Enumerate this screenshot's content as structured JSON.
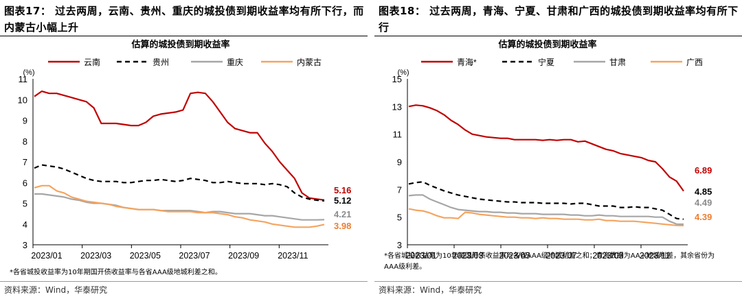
{
  "chart_data": [
    {
      "type": "line",
      "heading": "图表17： 过去两周，云南、贵州、重庆的城投债到期收益率均有所下行，而内蒙古小幅上升",
      "title": "估算的城投债到期收益率",
      "ylabel": "(%)",
      "ylim": [
        3,
        11
      ],
      "yticks": [
        "3",
        "4",
        "5",
        "6",
        "7",
        "8",
        "9",
        "10",
        "11"
      ],
      "xticks": [
        "2023/01",
        "2023/03",
        "2023/05",
        "2023/07",
        "2023/09",
        "2023/11"
      ],
      "series": [
        {
          "name": "云南",
          "color": "#C00000",
          "dash": "",
          "end_label": "5.16",
          "values": [
            10.15,
            10.4,
            10.3,
            10.3,
            10.2,
            10.1,
            10.0,
            9.9,
            9.6,
            8.85,
            8.85,
            8.85,
            8.8,
            8.75,
            8.75,
            8.9,
            9.2,
            9.3,
            9.35,
            9.4,
            9.5,
            10.3,
            10.35,
            10.3,
            9.9,
            9.4,
            8.9,
            8.6,
            8.5,
            8.4,
            8.4,
            7.9,
            7.5,
            7.0,
            6.6,
            6.2,
            5.5,
            5.25,
            5.2,
            5.16
          ]
        },
        {
          "name": "贵州",
          "color": "#000000",
          "dash": "7,5",
          "end_label": "5.12",
          "values": [
            6.7,
            6.85,
            6.8,
            6.75,
            6.65,
            6.5,
            6.35,
            6.2,
            6.1,
            6.05,
            6.05,
            6.05,
            6.0,
            6.0,
            6.05,
            6.1,
            6.1,
            6.15,
            6.1,
            6.05,
            6.1,
            6.2,
            6.15,
            6.1,
            6.0,
            6.0,
            6.05,
            6.0,
            5.95,
            5.95,
            5.95,
            5.9,
            5.95,
            5.9,
            5.8,
            5.5,
            5.3,
            5.2,
            5.15,
            5.12
          ]
        },
        {
          "name": "重庆",
          "color": "#A6A6A6",
          "dash": "",
          "end_label": "4.21",
          "values": [
            5.45,
            5.45,
            5.4,
            5.35,
            5.3,
            5.2,
            5.15,
            5.05,
            5.0,
            5.0,
            4.95,
            4.9,
            4.8,
            4.75,
            4.7,
            4.7,
            4.7,
            4.65,
            4.65,
            4.65,
            4.65,
            4.65,
            4.6,
            4.55,
            4.6,
            4.6,
            4.55,
            4.5,
            4.5,
            4.5,
            4.45,
            4.4,
            4.4,
            4.35,
            4.3,
            4.25,
            4.2,
            4.2,
            4.2,
            4.21
          ]
        },
        {
          "name": "内蒙古",
          "color": "#F4A460",
          "dash": "",
          "end_label": "3.98",
          "values": [
            5.75,
            5.85,
            5.85,
            5.6,
            5.5,
            5.3,
            5.2,
            5.1,
            5.05,
            5.0,
            4.95,
            4.85,
            4.8,
            4.75,
            4.7,
            4.7,
            4.7,
            4.65,
            4.6,
            4.6,
            4.6,
            4.6,
            4.55,
            4.55,
            4.55,
            4.5,
            4.45,
            4.35,
            4.3,
            4.2,
            4.15,
            4.1,
            4.0,
            3.95,
            3.9,
            3.85,
            3.85,
            3.85,
            3.9,
            3.98
          ]
        }
      ],
      "note": "*各省城投收益率为10年期国开债收益率与各省AAA级地城利差之和。",
      "source": "资料来源：Wind，华泰研究"
    },
    {
      "type": "line",
      "heading": "图表18： 过去两周，青海、宁夏、甘肃和广西的城投债到期收益率均有所下行",
      "title": "估算的城投债到期收益率",
      "ylabel": "(%)",
      "ylim": [
        3,
        15
      ],
      "yticks": [
        "3",
        "5",
        "7",
        "9",
        "11",
        "13",
        "15"
      ],
      "xticks": [
        "2023/01",
        "2023/03",
        "2023/05",
        "2023/07",
        "2023/09",
        "2023/11"
      ],
      "series": [
        {
          "name": "青海*",
          "color": "#C00000",
          "dash": "",
          "end_label": "6.89",
          "values": [
            13.0,
            13.1,
            13.05,
            12.9,
            12.7,
            12.4,
            12.0,
            11.7,
            11.3,
            11.0,
            10.9,
            10.8,
            10.75,
            10.7,
            10.7,
            10.6,
            10.6,
            10.6,
            10.6,
            10.55,
            10.6,
            10.55,
            10.6,
            10.6,
            10.45,
            10.5,
            10.3,
            10.1,
            9.9,
            9.8,
            9.6,
            9.5,
            9.4,
            9.3,
            9.1,
            9.0,
            8.5,
            7.9,
            7.6,
            6.89
          ]
        },
        {
          "name": "宁夏",
          "color": "#000000",
          "dash": "7,5",
          "end_label": "4.85",
          "values": [
            7.4,
            7.5,
            7.55,
            7.3,
            7.1,
            6.9,
            6.75,
            6.6,
            6.5,
            6.4,
            6.3,
            6.25,
            6.2,
            6.15,
            6.1,
            6.1,
            6.05,
            6.05,
            6.05,
            6.0,
            6.0,
            6.0,
            6.0,
            5.95,
            6.0,
            6.0,
            5.9,
            5.8,
            5.8,
            5.8,
            5.7,
            5.7,
            5.75,
            5.7,
            5.7,
            5.6,
            5.5,
            5.2,
            4.9,
            4.85
          ]
        },
        {
          "name": "甘肃",
          "color": "#A6A6A6",
          "dash": "",
          "end_label": "4.49",
          "values": [
            6.55,
            6.6,
            6.6,
            6.3,
            6.1,
            5.9,
            5.7,
            5.55,
            5.5,
            5.45,
            5.4,
            5.4,
            5.35,
            5.35,
            5.3,
            5.3,
            5.25,
            5.25,
            5.25,
            5.2,
            5.2,
            5.2,
            5.2,
            5.15,
            5.15,
            5.1,
            5.1,
            5.15,
            5.1,
            5.1,
            5.05,
            5.05,
            5.05,
            5.05,
            5.05,
            5.0,
            5.0,
            4.7,
            4.5,
            4.49
          ]
        },
        {
          "name": "广西",
          "color": "#F4A460",
          "dash": "",
          "end_label": "4.39",
          "values": [
            5.6,
            5.5,
            5.45,
            5.3,
            5.1,
            4.95,
            4.95,
            4.9,
            5.35,
            5.3,
            5.2,
            5.15,
            5.1,
            5.05,
            5.0,
            5.0,
            4.95,
            4.95,
            4.9,
            4.95,
            4.9,
            4.9,
            4.85,
            4.85,
            4.85,
            4.8,
            4.8,
            4.85,
            4.75,
            4.75,
            4.7,
            4.7,
            4.7,
            4.65,
            4.6,
            4.55,
            4.5,
            4.45,
            4.4,
            4.39
          ]
        }
      ],
      "note": "*各省城投收益率为10年期国开债收益率与各省AAA级地城利差之和；青海数据为AA+地城利差，其余省份为AAA级利差。",
      "source": "资料来源：Wind，华泰研究"
    }
  ]
}
